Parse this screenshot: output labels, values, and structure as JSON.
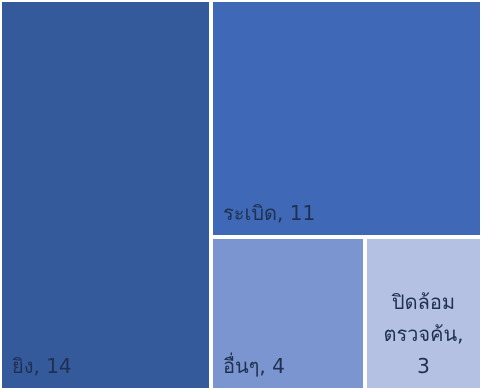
{
  "chart_data": {
    "type": "treemap",
    "title": "",
    "items": [
      {
        "category": "ยิง",
        "value": 14,
        "label": "ยิง, 14",
        "color": "#345a9c",
        "text_color": "#1f3050"
      },
      {
        "category": "ระเบิด",
        "value": 11,
        "label": "ระเบิด, 11",
        "color": "#3f69b7",
        "text_color": "#1f3050"
      },
      {
        "category": "อื่นๆ",
        "value": 4,
        "label": "อื่นๆ, 4",
        "color": "#7a95cf",
        "text_color": "#1f3050"
      },
      {
        "category": "ปิดล้อมตรวจค้น",
        "value": 3,
        "label_lines": [
          "ปิดล้อม",
          "ตรวจค้น,",
          "3"
        ],
        "color": "#b4c1e2",
        "text_color": "#1f3050"
      }
    ]
  }
}
